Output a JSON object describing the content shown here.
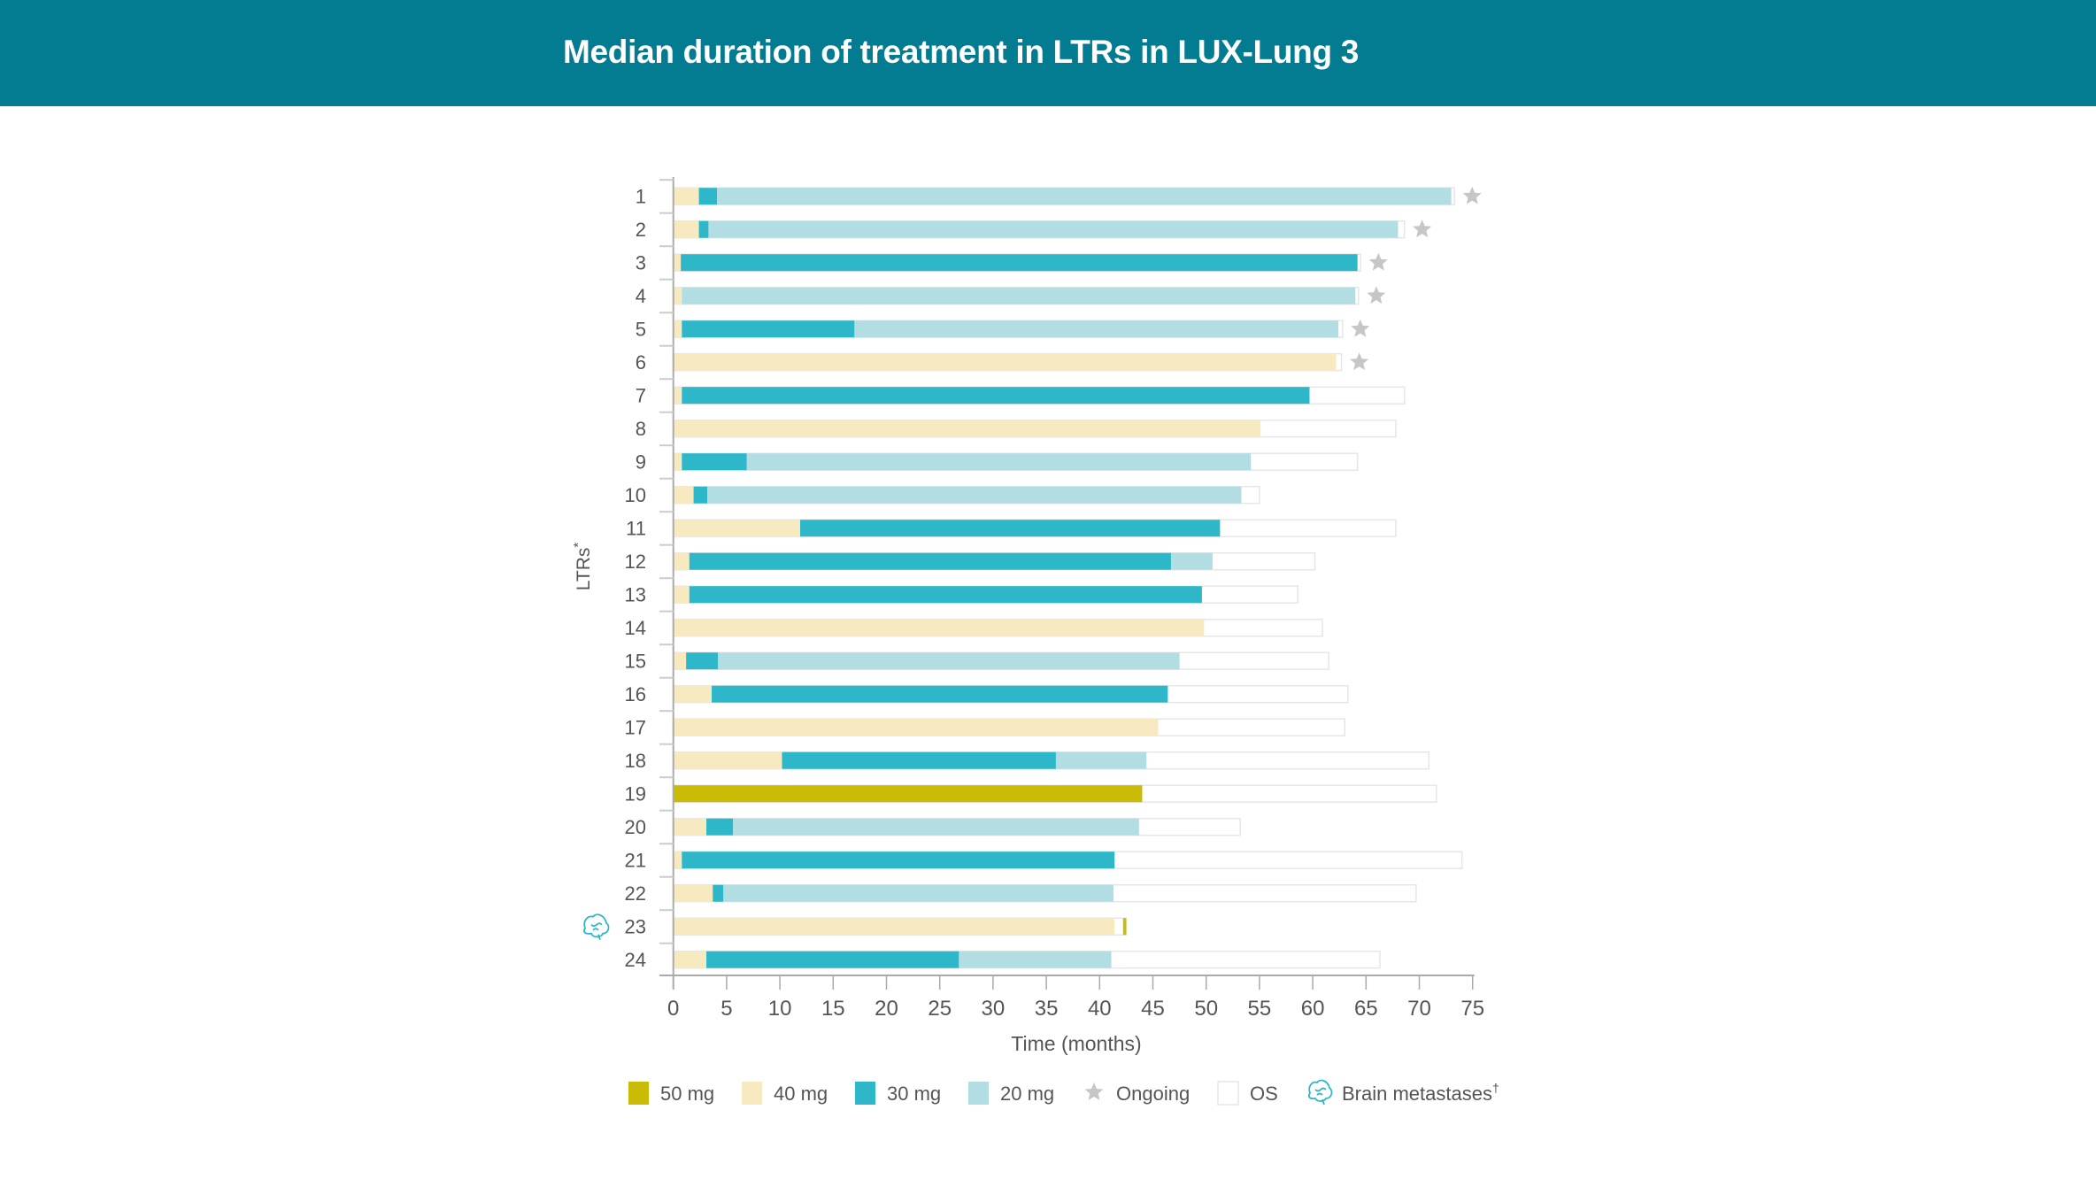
{
  "header": {
    "title": "Median duration of treatment in LTRs in LUX-Lung 3"
  },
  "colors": {
    "header_bg": "#037b91",
    "50mg": "#c9bb06",
    "40mg": "#f7e9c0",
    "30mg": "#2db7c9",
    "20mg": "#b2dde3",
    "os_border": "#e6e6e6",
    "star": "#c6c6c6",
    "brain": "#2db7c9",
    "axis": "#aaaaaa",
    "text": "#555555"
  },
  "chart_data": {
    "type": "bar",
    "orientation": "horizontal",
    "stacked": true,
    "title": "Median duration of treatment in LTRs in LUX-Lung 3",
    "xlabel": "Time (months)",
    "ylabel": "LTRs",
    "ylabel_superscript": "*",
    "xlim": [
      0,
      75
    ],
    "xticks": [
      0,
      5,
      10,
      15,
      20,
      25,
      30,
      35,
      40,
      45,
      50,
      55,
      60,
      65,
      70,
      75
    ],
    "grid": false,
    "legend_position": "bottom",
    "legend": [
      {
        "key": "50mg",
        "label": "50 mg",
        "kind": "swatch"
      },
      {
        "key": "40mg",
        "label": "40 mg",
        "kind": "swatch"
      },
      {
        "key": "30mg",
        "label": "30 mg",
        "kind": "swatch"
      },
      {
        "key": "20mg",
        "label": "20 mg",
        "kind": "swatch"
      },
      {
        "key": "ongoing",
        "label": "Ongoing",
        "kind": "star"
      },
      {
        "key": "os",
        "label": "OS",
        "kind": "outline"
      },
      {
        "key": "brain",
        "label": "Brain metastases",
        "sup": "†",
        "kind": "brain"
      }
    ],
    "categories": [
      "1",
      "2",
      "3",
      "4",
      "5",
      "6",
      "7",
      "8",
      "9",
      "10",
      "11",
      "12",
      "13",
      "14",
      "15",
      "16",
      "17",
      "18",
      "19",
      "20",
      "21",
      "22",
      "23",
      "24"
    ],
    "patients": [
      {
        "id": "1",
        "segments": [
          [
            "40mg",
            0,
            2.4
          ],
          [
            "30mg",
            2.4,
            4.1
          ],
          [
            "20mg",
            4.1,
            73.0
          ]
        ],
        "os": 73.3,
        "ongoing": true
      },
      {
        "id": "2",
        "segments": [
          [
            "40mg",
            0,
            2.4
          ],
          [
            "30mg",
            2.4,
            3.3
          ],
          [
            "20mg",
            3.3,
            68.0
          ]
        ],
        "os": 68.6,
        "ongoing": true
      },
      {
        "id": "3",
        "segments": [
          [
            "40mg",
            0,
            0.7
          ],
          [
            "30mg",
            0.7,
            64.2
          ]
        ],
        "os": 64.5,
        "ongoing": true
      },
      {
        "id": "4",
        "segments": [
          [
            "40mg",
            0,
            0.8
          ],
          [
            "20mg",
            0.8,
            64.0
          ]
        ],
        "os": 64.3,
        "ongoing": true
      },
      {
        "id": "5",
        "segments": [
          [
            "40mg",
            0,
            0.8
          ],
          [
            "30mg",
            0.8,
            17.0
          ],
          [
            "20mg",
            17.0,
            62.4
          ]
        ],
        "os": 62.8,
        "ongoing": true
      },
      {
        "id": "6",
        "segments": [
          [
            "40mg",
            0,
            62.2
          ]
        ],
        "os": 62.7,
        "ongoing": true
      },
      {
        "id": "7",
        "segments": [
          [
            "40mg",
            0,
            0.8
          ],
          [
            "30mg",
            0.8,
            59.7
          ]
        ],
        "os": 68.6,
        "ongoing": false
      },
      {
        "id": "8",
        "segments": [
          [
            "40mg",
            0,
            55.1
          ]
        ],
        "os": 67.8,
        "ongoing": false
      },
      {
        "id": "9",
        "segments": [
          [
            "40mg",
            0,
            0.8
          ],
          [
            "30mg",
            0.8,
            6.9
          ],
          [
            "20mg",
            6.9,
            54.2
          ]
        ],
        "os": 64.2,
        "ongoing": false
      },
      {
        "id": "10",
        "segments": [
          [
            "40mg",
            0,
            1.9
          ],
          [
            "30mg",
            1.9,
            3.2
          ],
          [
            "20mg",
            3.2,
            53.3
          ]
        ],
        "os": 55.0,
        "ongoing": false
      },
      {
        "id": "11",
        "segments": [
          [
            "40mg",
            0,
            11.9
          ],
          [
            "30mg",
            11.9,
            51.3
          ]
        ],
        "os": 67.8,
        "ongoing": false
      },
      {
        "id": "12",
        "segments": [
          [
            "40mg",
            0,
            1.5
          ],
          [
            "30mg",
            1.5,
            46.7
          ],
          [
            "20mg",
            46.7,
            50.6
          ]
        ],
        "os": 60.2,
        "ongoing": false
      },
      {
        "id": "13",
        "segments": [
          [
            "40mg",
            0,
            1.5
          ],
          [
            "30mg",
            1.5,
            49.6
          ]
        ],
        "os": 58.6,
        "ongoing": false
      },
      {
        "id": "14",
        "segments": [
          [
            "40mg",
            0,
            49.8
          ]
        ],
        "os": 60.9,
        "ongoing": false
      },
      {
        "id": "15",
        "segments": [
          [
            "40mg",
            0,
            1.2
          ],
          [
            "30mg",
            1.2,
            4.2
          ],
          [
            "20mg",
            4.2,
            47.5
          ]
        ],
        "os": 61.5,
        "ongoing": false
      },
      {
        "id": "16",
        "segments": [
          [
            "40mg",
            0,
            3.6
          ],
          [
            "30mg",
            3.6,
            46.4
          ]
        ],
        "os": 63.3,
        "ongoing": false
      },
      {
        "id": "17",
        "segments": [
          [
            "40mg",
            0,
            45.5
          ]
        ],
        "os": 63.0,
        "ongoing": false
      },
      {
        "id": "18",
        "segments": [
          [
            "40mg",
            0,
            10.2
          ],
          [
            "30mg",
            10.2,
            35.9
          ],
          [
            "20mg",
            35.9,
            44.4
          ]
        ],
        "os": 70.9,
        "ongoing": false
      },
      {
        "id": "19",
        "segments": [
          [
            "50mg",
            0,
            44.0
          ]
        ],
        "os": 71.6,
        "ongoing": false
      },
      {
        "id": "20",
        "segments": [
          [
            "40mg",
            0,
            3.1
          ],
          [
            "30mg",
            3.1,
            5.6
          ],
          [
            "20mg",
            5.6,
            43.7
          ]
        ],
        "os": 53.2,
        "ongoing": false
      },
      {
        "id": "21",
        "segments": [
          [
            "40mg",
            0,
            0.8
          ],
          [
            "30mg",
            0.8,
            41.4
          ]
        ],
        "os": 74.0,
        "ongoing": false
      },
      {
        "id": "22",
        "segments": [
          [
            "40mg",
            0,
            3.7
          ],
          [
            "30mg",
            3.7,
            4.7
          ],
          [
            "20mg",
            4.7,
            41.3
          ]
        ],
        "os": 69.7,
        "ongoing": false
      },
      {
        "id": "23",
        "segments": [
          [
            "40mg",
            0,
            41.4
          ],
          [
            "50mg",
            42.2,
            42.5
          ]
        ],
        "os": 42.5,
        "ongoing": false,
        "brain_metastases": true
      },
      {
        "id": "24",
        "segments": [
          [
            "40mg",
            0,
            3.1
          ],
          [
            "30mg",
            3.1,
            26.8
          ],
          [
            "20mg",
            26.8,
            41.1
          ]
        ],
        "os": 66.3,
        "ongoing": false
      }
    ]
  }
}
